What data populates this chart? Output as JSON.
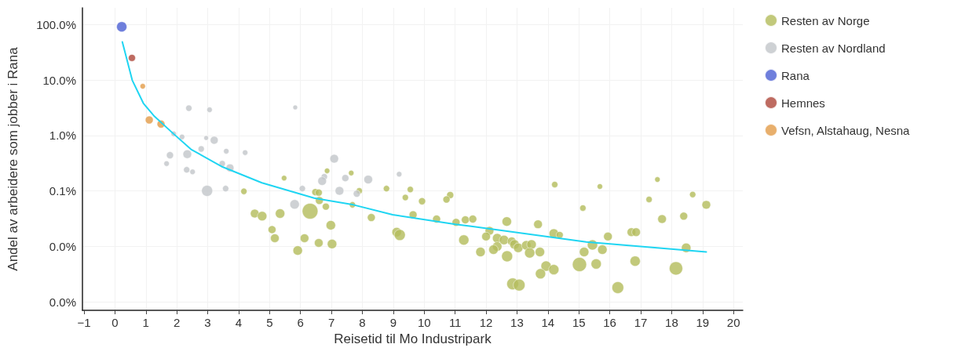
{
  "chart_data": {
    "type": "bubble",
    "xlabel": "Reisetid til Mo Industripark",
    "ylabel": "Andel av arbeidere som jobber i Rana",
    "xlim": [
      -1.05,
      20.3
    ],
    "xticks": [
      {
        "value": -1,
        "label": "−1"
      },
      0,
      1,
      2,
      3,
      4,
      5,
      6,
      7,
      8,
      9,
      10,
      11,
      12,
      13,
      14,
      15,
      16,
      17,
      18,
      19,
      20
    ],
    "ylim": [
      0.0007,
      200
    ],
    "yticks": [
      {
        "value": 100,
        "label": "100.0%"
      },
      {
        "value": 10,
        "label": "10.0%"
      },
      {
        "value": 1,
        "label": "1.0%"
      },
      {
        "value": 0.1,
        "label": "0.1%"
      },
      {
        "value": 0.01,
        "label": "0.0%"
      },
      {
        "value": 0.001,
        "label": "0.0%"
      }
    ],
    "log": "y",
    "grid": true,
    "legend": "top right",
    "marker": "circle",
    "series": [
      {
        "name": "Resten av Norge",
        "color": "#b5bd5e",
        "x": [
          5.47,
          4.17,
          6.86,
          7.64,
          7.9,
          6.48,
          6.59,
          6.61,
          6.82,
          7.68,
          8.78,
          9.55,
          9.39,
          9.93,
          10.84,
          10.72,
          4.52,
          4.76,
          5.34,
          6.31,
          5.08,
          5.17,
          6.13,
          5.91,
          6.59,
          7.02,
          6.98,
          8.29,
          9.64,
          9.11,
          9.21,
          10.4,
          11.03,
          11.33,
          11.28,
          11.57,
          11.82,
          12.11,
          12.0,
          12.36,
          12.36,
          12.24,
          12.67,
          12.58,
          12.68,
          12.83,
          12.92,
          13.04,
          13.3,
          13.47,
          13.41,
          13.74,
          13.68,
          12.86,
          13.07,
          13.94,
          13.76,
          14.19,
          14.19,
          14.38,
          14.22,
          15.68,
          15.13,
          15.02,
          15.17,
          15.44,
          15.56,
          15.76,
          15.94,
          16.26,
          16.7,
          16.85,
          16.82,
          17.27,
          17.54,
          17.69,
          18.14,
          18.39,
          18.47,
          18.68,
          19.12
        ],
        "values": [
          0.17,
          0.098,
          0.23,
          0.21,
          0.1,
          0.095,
          0.093,
          0.067,
          0.052,
          0.056,
          0.11,
          0.106,
          0.076,
          0.065,
          0.084,
          0.07,
          0.039,
          0.035,
          0.039,
          0.043,
          0.02,
          0.014,
          0.014,
          0.0084,
          0.0115,
          0.011,
          0.024,
          0.033,
          0.037,
          0.018,
          0.016,
          0.031,
          0.027,
          0.03,
          0.013,
          0.031,
          0.0079,
          0.019,
          0.015,
          0.014,
          0.0099,
          0.0087,
          0.028,
          0.013,
          0.0066,
          0.0123,
          0.0108,
          0.0094,
          0.0104,
          0.0108,
          0.0076,
          0.0079,
          0.025,
          0.0021,
          0.002,
          0.0044,
          0.0032,
          0.0038,
          0.017,
          0.016,
          0.13,
          0.12,
          0.049,
          0.0047,
          0.0079,
          0.0106,
          0.0048,
          0.0087,
          0.015,
          0.0018,
          0.018,
          0.018,
          0.0054,
          0.07,
          0.16,
          0.031,
          0.004,
          0.035,
          0.0094,
          0.086,
          0.056
        ],
        "sizes": [
          0.12,
          0.16,
          0.12,
          0.12,
          0.16,
          0.2,
          0.2,
          0.25,
          0.2,
          0.16,
          0.16,
          0.16,
          0.16,
          0.2,
          0.2,
          0.2,
          0.3,
          0.36,
          0.36,
          1.0,
          0.25,
          0.3,
          0.3,
          0.36,
          0.3,
          0.36,
          0.36,
          0.25,
          0.25,
          0.36,
          0.49,
          0.25,
          0.25,
          0.25,
          0.42,
          0.25,
          0.36,
          0.3,
          0.3,
          0.36,
          0.36,
          0.36,
          0.36,
          0.36,
          0.49,
          0.3,
          0.36,
          0.36,
          0.36,
          0.36,
          0.42,
          0.36,
          0.3,
          0.56,
          0.56,
          0.42,
          0.42,
          0.42,
          0.36,
          0.2,
          0.16,
          0.12,
          0.16,
          0.81,
          0.36,
          0.42,
          0.42,
          0.36,
          0.3,
          0.56,
          0.3,
          0.3,
          0.42,
          0.16,
          0.12,
          0.3,
          0.72,
          0.25,
          0.36,
          0.16,
          0.3
        ]
      },
      {
        "name": "Resten av Nordland",
        "color": "#c3c7cb",
        "x": [
          2.39,
          3.06,
          5.83,
          1.9,
          2.17,
          2.95,
          3.21,
          2.79,
          3.6,
          4.21,
          1.78,
          2.34,
          1.67,
          3.47,
          3.72,
          2.32,
          2.51,
          2.98,
          3.58,
          6.06,
          5.81,
          7.09,
          6.77,
          6.7,
          7.45,
          8.19,
          7.26,
          7.82,
          9.19
        ],
        "values": [
          3.1,
          2.9,
          3.2,
          1.07,
          0.94,
          0.9,
          0.82,
          0.57,
          0.52,
          0.49,
          0.44,
          0.46,
          0.31,
          0.31,
          0.26,
          0.24,
          0.22,
          0.1,
          0.11,
          0.11,
          0.057,
          0.38,
          0.18,
          0.15,
          0.17,
          0.16,
          0.1,
          0.089,
          0.2
        ],
        "sizes": [
          0.16,
          0.12,
          0.09,
          0.12,
          0.12,
          0.09,
          0.25,
          0.16,
          0.12,
          0.12,
          0.2,
          0.3,
          0.12,
          0.16,
          0.25,
          0.16,
          0.12,
          0.49,
          0.16,
          0.16,
          0.36,
          0.3,
          0.16,
          0.3,
          0.2,
          0.3,
          0.3,
          0.2,
          0.12
        ]
      },
      {
        "name": "Rana",
        "color": "#4f63d4",
        "x": [
          0.22
        ],
        "values": [
          91
        ],
        "sizes": [
          0.42
        ]
      },
      {
        "name": "Hemnes",
        "color": "#b04a3e",
        "x": [
          0.55
        ],
        "values": [
          25
        ],
        "sizes": [
          0.2
        ]
      },
      {
        "name": "Vefsn, Alstahaug, Nesna",
        "color": "#e39d4c",
        "x": [
          0.9,
          1.11,
          1.49
        ],
        "values": [
          7.7,
          1.9,
          1.6
        ],
        "sizes": [
          0.12,
          0.25,
          0.25
        ]
      },
      {
        "type": "line",
        "color": "#1fd5f2",
        "marker": "none",
        "line_style": "solid",
        "x": [
          0.24,
          0.56,
          0.92,
          1.28,
          1.87,
          2.46,
          3.48,
          4.75,
          6.44,
          7.71,
          8.98,
          11.01,
          11.52,
          15.24,
          19.12
        ],
        "values": [
          48.5,
          9.9,
          3.8,
          2.2,
          1.1,
          0.56,
          0.27,
          0.14,
          0.074,
          0.056,
          0.037,
          0.025,
          0.023,
          0.012,
          0.0079
        ]
      }
    ]
  }
}
